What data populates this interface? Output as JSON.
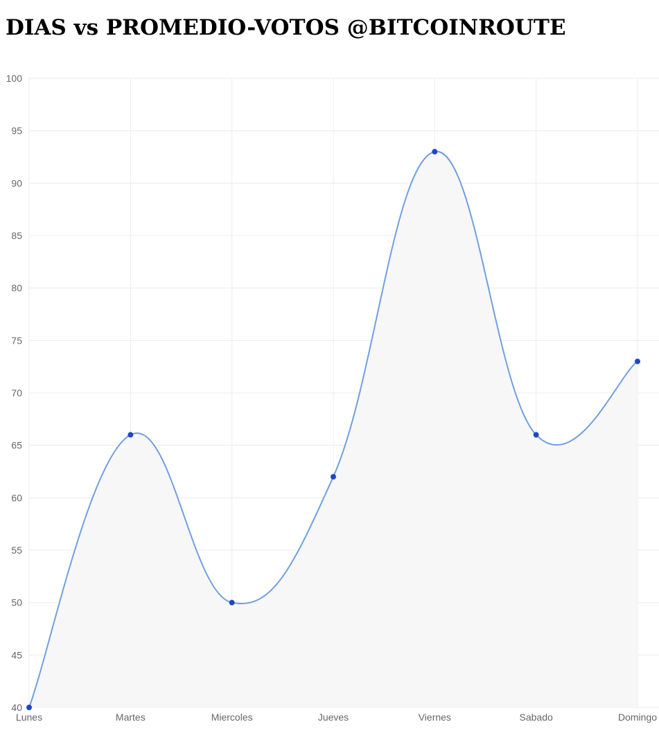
{
  "page": {
    "title": "DIAS vs PROMEDIO-VOTOS @BITCOINROUTE"
  },
  "colors": {
    "line": "#6f9fe0",
    "point": "#1f46c9",
    "fill": "#f7f7f8",
    "grid": "#ececec",
    "tick_text": "#666666"
  },
  "chart_data": {
    "type": "area",
    "title": "DIAS vs PROMEDIO-VOTOS @BITCOINROUTE",
    "categories": [
      "Lunes",
      "Martes",
      "Miercoles",
      "Jueves",
      "Viernes",
      "Sabado",
      "Domingo"
    ],
    "series": [
      {
        "values": [
          40,
          66,
          50,
          62,
          93,
          66,
          73
        ]
      }
    ],
    "ylim": [
      40,
      100
    ],
    "y_ticks": [
      "100",
      "95",
      "90",
      "85",
      "80",
      "75",
      "70",
      "65",
      "60",
      "55",
      "50",
      "45",
      "40"
    ],
    "grid": true,
    "legend": "none",
    "line_style": "smooth"
  }
}
